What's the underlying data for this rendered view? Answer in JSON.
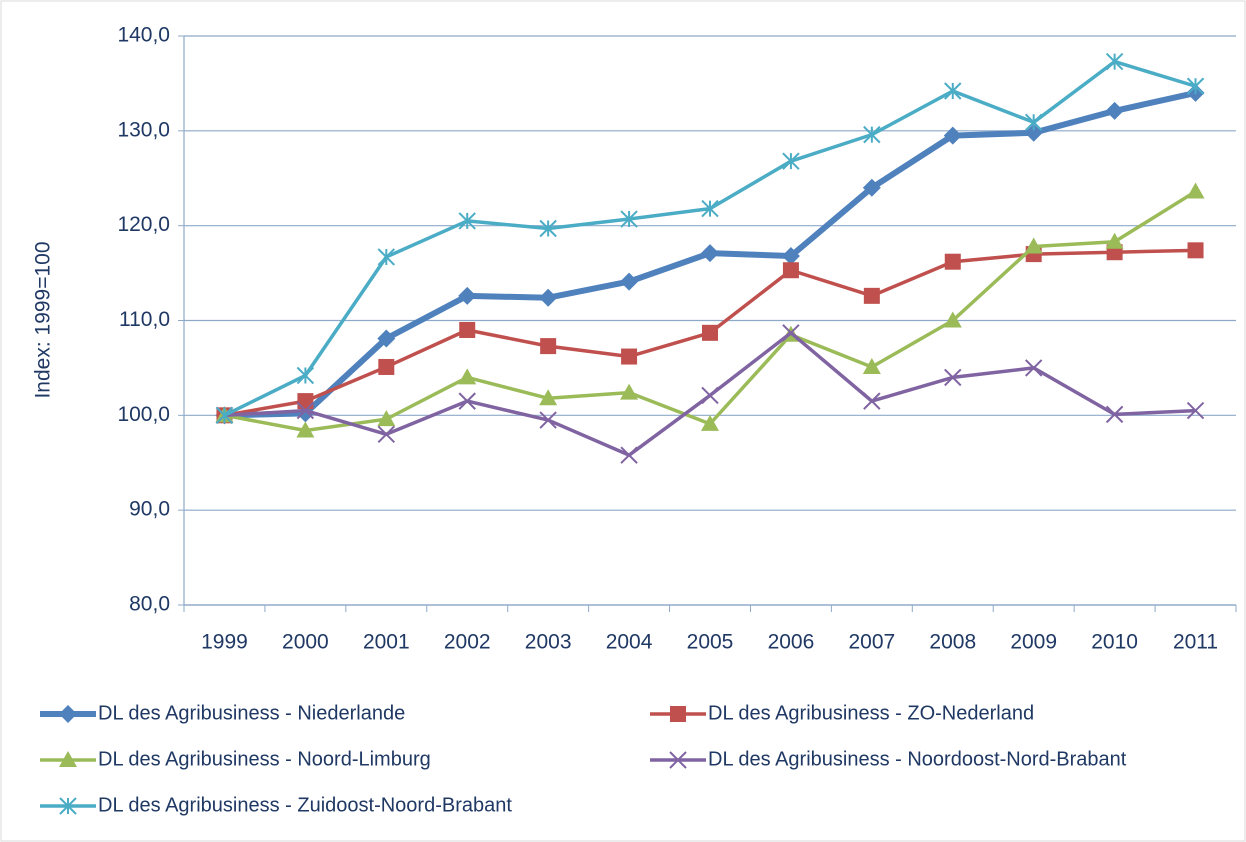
{
  "chart_data": {
    "type": "line",
    "y_label": "Index: 1999=100",
    "categories": [
      "1999",
      "2000",
      "2001",
      "2002",
      "2003",
      "2004",
      "2005",
      "2006",
      "2007",
      "2008",
      "2009",
      "2010",
      "2011"
    ],
    "ylim": [
      80,
      140
    ],
    "yticks": [
      {
        "value": 80,
        "label": "80,0"
      },
      {
        "value": 90,
        "label": "90,0"
      },
      {
        "value": 100,
        "label": "100,0"
      },
      {
        "value": 110,
        "label": "110,0"
      },
      {
        "value": 120,
        "label": "120,0"
      },
      {
        "value": 130,
        "label": "130,0"
      },
      {
        "value": 140,
        "label": "140,0"
      }
    ],
    "grid": true,
    "series": [
      {
        "name": "DL des Agribusiness - Niederlande",
        "color": "#4F81BD",
        "marker": "diamond",
        "values": [
          100.0,
          100.2,
          108.1,
          112.6,
          112.4,
          114.1,
          117.1,
          116.8,
          124.0,
          129.5,
          129.8,
          132.1,
          134.0
        ]
      },
      {
        "name": "DL des Agribusiness - ZO-Nederland",
        "color": "#C0504D",
        "marker": "square",
        "values": [
          100.0,
          101.5,
          105.1,
          109.0,
          107.3,
          106.2,
          108.7,
          115.3,
          112.6,
          116.2,
          117.0,
          117.2,
          117.4
        ]
      },
      {
        "name": "DL des Agribusiness - Noord-Limburg",
        "color": "#9BBB59",
        "marker": "triangle",
        "values": [
          100.0,
          98.4,
          99.6,
          104.0,
          101.8,
          102.4,
          99.1,
          108.5,
          105.1,
          110.0,
          117.8,
          118.3,
          123.6
        ]
      },
      {
        "name": "DL des Agribusiness - Noordoost-Nord-Brabant",
        "color": "#8064A2",
        "marker": "x",
        "values": [
          100.0,
          100.5,
          98.0,
          101.5,
          99.5,
          95.8,
          102.1,
          108.7,
          101.5,
          104.0,
          105.0,
          100.1,
          100.5
        ]
      },
      {
        "name": "DL des Agribusiness - Zuidoost-Noord-Brabant",
        "color": "#4BACC6",
        "marker": "asterisk",
        "values": [
          100.0,
          104.2,
          116.7,
          120.5,
          119.7,
          120.7,
          121.8,
          126.8,
          129.6,
          134.2,
          130.9,
          137.3,
          134.7
        ]
      }
    ]
  }
}
